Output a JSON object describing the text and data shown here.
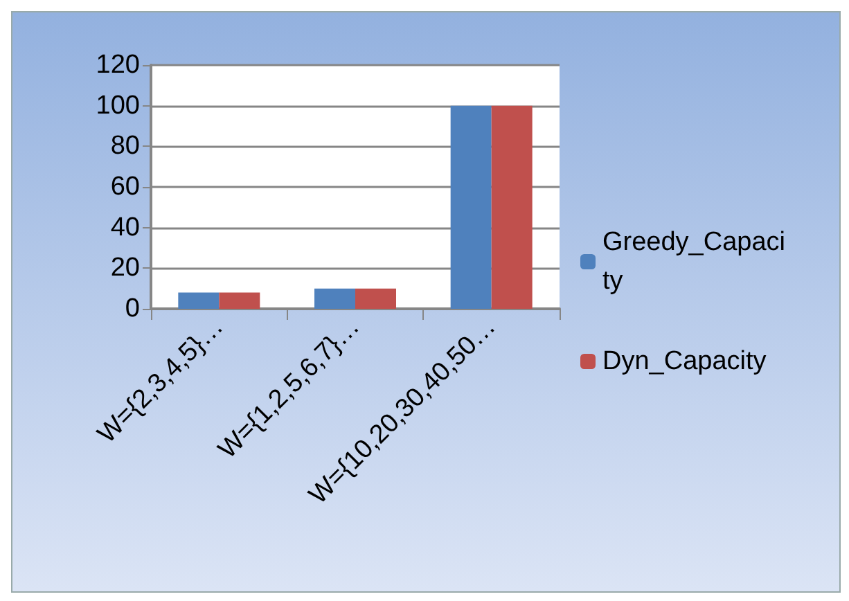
{
  "chart_data": {
    "type": "bar",
    "categories": [
      "W={2,3,4,5}…",
      "W={1,2,5,6,7}…",
      "W={10,20,30,40,50…"
    ],
    "series": [
      {
        "name": "Greedy_Capacity",
        "color": "#4f81bd",
        "values": [
          8,
          10,
          100
        ]
      },
      {
        "name": "Dyn_Capacity",
        "color": "#c0504d",
        "values": [
          8,
          10,
          100
        ]
      }
    ],
    "ylim": [
      0,
      120
    ],
    "yticks": [
      0,
      20,
      40,
      60,
      80,
      100,
      120
    ],
    "grid": "y",
    "legend": "right"
  }
}
